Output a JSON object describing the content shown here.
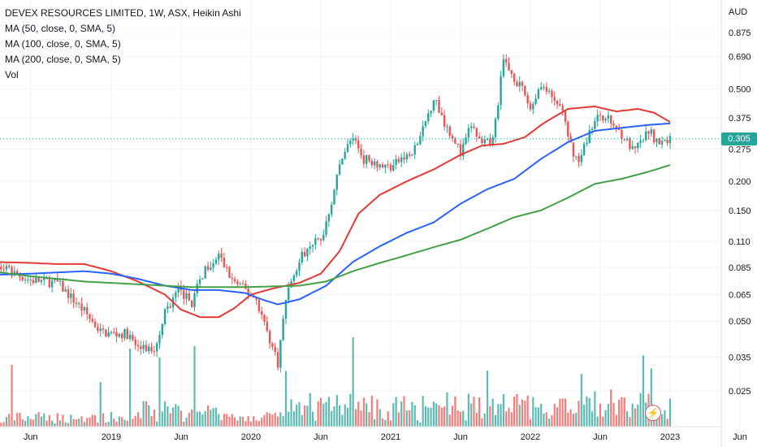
{
  "legend": {
    "title": "DEVEX RESOURCES LIMITED, 1W, ASX, Heikin Ashi",
    "ma50": "MA (50, close, 0, SMA, 5)",
    "ma100": "MA (100, close, 0, SMA, 5)",
    "ma200": "MA (200, close, 0, SMA, 5)",
    "vol": "Vol"
  },
  "currency": "AUD",
  "last_price": "0.305",
  "colors": {
    "up": "#26a69a",
    "down": "#ef5350",
    "ma50": "#e53935",
    "ma100": "#2962ff",
    "ma200": "#43a047",
    "price_line": "#26a69a"
  },
  "icons": {
    "event": "lightning-icon"
  },
  "chart_data": {
    "type": "candlestick",
    "scale": "log",
    "ylim": [
      0.021,
      1.0
    ],
    "y_ticks": [
      0.875,
      0.69,
      0.5,
      0.375,
      0.275,
      0.2,
      0.15,
      0.11,
      0.085,
      0.065,
      0.05,
      0.035,
      0.025
    ],
    "y_tick_labels": [
      "0.875",
      "0.690",
      "0.500",
      "0.375",
      "0.275",
      "0.200",
      "0.150",
      "0.110",
      "0.085",
      "0.065",
      "0.050",
      "0.035",
      "0.025"
    ],
    "x_tick_labels": [
      "Jun",
      "2019",
      "Jun",
      "2020",
      "Jun",
      "2021",
      "Jun",
      "2022",
      "Jun",
      "2023",
      "Jun"
    ],
    "x_tick_weeks": [
      0,
      30,
      56,
      82,
      108,
      134,
      160,
      186,
      212,
      238,
      264
    ],
    "series": [
      {
        "name": "MA (50, close, 0, SMA, 5)",
        "weeks": [
          -15,
          0,
          10,
          20,
          30,
          40,
          50,
          56,
          63,
          70,
          76,
          82,
          90,
          100,
          108,
          115,
          122,
          130,
          140,
          150,
          160,
          168,
          176,
          184,
          190,
          195,
          200,
          210,
          218,
          226,
          232,
          238
        ],
        "values": [
          0.09,
          0.089,
          0.088,
          0.088,
          0.082,
          0.074,
          0.065,
          0.056,
          0.052,
          0.052,
          0.057,
          0.065,
          0.069,
          0.073,
          0.08,
          0.1,
          0.145,
          0.175,
          0.2,
          0.225,
          0.26,
          0.285,
          0.29,
          0.31,
          0.35,
          0.38,
          0.41,
          0.42,
          0.4,
          0.41,
          0.395,
          0.36
        ]
      },
      {
        "name": "MA (100, close, 0, SMA, 5)",
        "weeks": [
          -15,
          0,
          10,
          20,
          30,
          40,
          50,
          60,
          70,
          80,
          86,
          92,
          100,
          110,
          120,
          130,
          140,
          150,
          160,
          170,
          180,
          190,
          200,
          210,
          220,
          230,
          238
        ],
        "values": [
          0.079,
          0.08,
          0.081,
          0.082,
          0.08,
          0.076,
          0.071,
          0.068,
          0.068,
          0.066,
          0.062,
          0.059,
          0.062,
          0.071,
          0.09,
          0.105,
          0.12,
          0.133,
          0.16,
          0.185,
          0.205,
          0.25,
          0.295,
          0.33,
          0.34,
          0.35,
          0.355
        ]
      },
      {
        "name": "MA (200, close, 0, SMA, 5)",
        "weeks": [
          -15,
          0,
          20,
          40,
          60,
          80,
          100,
          110,
          120,
          130,
          140,
          150,
          160,
          170,
          180,
          190,
          200,
          210,
          220,
          230,
          238
        ],
        "values": [
          0.082,
          0.078,
          0.074,
          0.072,
          0.07,
          0.07,
          0.071,
          0.074,
          0.082,
          0.089,
          0.096,
          0.104,
          0.112,
          0.125,
          0.14,
          0.15,
          0.17,
          0.195,
          0.205,
          0.22,
          0.235
        ]
      }
    ],
    "price_path": {
      "weeks": [
        -15,
        -8,
        0,
        10,
        20,
        26,
        30,
        36,
        40,
        46,
        50,
        55,
        60,
        65,
        70,
        75,
        80,
        84,
        88,
        92,
        95,
        98,
        100,
        104,
        108,
        112,
        116,
        120,
        124,
        128,
        130,
        134,
        138,
        142,
        146,
        150,
        154,
        158,
        160,
        164,
        168,
        172,
        176,
        180,
        184,
        186,
        190,
        194,
        198,
        200,
        204,
        208,
        212,
        216,
        220,
        224,
        226,
        230,
        234,
        238
      ],
      "values": [
        0.088,
        0.082,
        0.075,
        0.073,
        0.055,
        0.045,
        0.044,
        0.044,
        0.038,
        0.038,
        0.055,
        0.068,
        0.06,
        0.085,
        0.096,
        0.075,
        0.068,
        0.062,
        0.045,
        0.033,
        0.062,
        0.082,
        0.09,
        0.11,
        0.11,
        0.165,
        0.26,
        0.31,
        0.25,
        0.245,
        0.235,
        0.23,
        0.25,
        0.26,
        0.33,
        0.46,
        0.36,
        0.3,
        0.26,
        0.35,
        0.285,
        0.3,
        0.66,
        0.56,
        0.47,
        0.41,
        0.53,
        0.45,
        0.41,
        0.3,
        0.24,
        0.33,
        0.39,
        0.36,
        0.32,
        0.27,
        0.28,
        0.33,
        0.29,
        0.305
      ]
    },
    "volume_note": "relative volume bars, same colouring as candles"
  }
}
